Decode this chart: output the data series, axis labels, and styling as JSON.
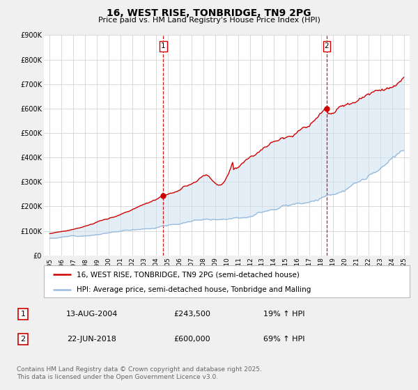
{
  "title": "16, WEST RISE, TONBRIDGE, TN9 2PG",
  "subtitle": "Price paid vs. HM Land Registry's House Price Index (HPI)",
  "ylim": [
    0,
    900000
  ],
  "yticks": [
    0,
    100000,
    200000,
    300000,
    400000,
    500000,
    600000,
    700000,
    800000,
    900000
  ],
  "ytick_labels": [
    "£0",
    "£100K",
    "£200K",
    "£300K",
    "£400K",
    "£500K",
    "£600K",
    "£700K",
    "£800K",
    "£900K"
  ],
  "xlim_start": 1994.5,
  "xlim_end": 2025.5,
  "xticks": [
    1995,
    1996,
    1997,
    1998,
    1999,
    2000,
    2001,
    2002,
    2003,
    2004,
    2005,
    2006,
    2007,
    2008,
    2009,
    2010,
    2011,
    2012,
    2013,
    2014,
    2015,
    2016,
    2017,
    2018,
    2019,
    2020,
    2021,
    2022,
    2023,
    2024,
    2025
  ],
  "bg_color": "#f0f0f0",
  "plot_bg_color": "#ffffff",
  "grid_color": "#cccccc",
  "line1_color": "#cc0000",
  "line2_color": "#99bbdd",
  "vline_color": "#cc0000",
  "sale1_x": 2004.617,
  "sale1_y": 243500,
  "sale2_x": 2018.472,
  "sale2_y": 600000,
  "marker_color": "#cc0000",
  "shade_color": "#cce0f0",
  "legend_label1": "16, WEST RISE, TONBRIDGE, TN9 2PG (semi-detached house)",
  "legend_label2": "HPI: Average price, semi-detached house, Tonbridge and Malling",
  "annotation1_num": "1",
  "annotation1_date": "13-AUG-2004",
  "annotation1_price": "£243,500",
  "annotation1_hpi": "19% ↑ HPI",
  "annotation2_num": "2",
  "annotation2_date": "22-JUN-2018",
  "annotation2_price": "£600,000",
  "annotation2_hpi": "69% ↑ HPI",
  "footnote": "Contains HM Land Registry data © Crown copyright and database right 2025.\nThis data is licensed under the Open Government Licence v3.0.",
  "title_fontsize": 10,
  "subtitle_fontsize": 8,
  "tick_fontsize": 7,
  "legend_fontsize": 7.5,
  "annotation_fontsize": 8,
  "footnote_fontsize": 6.5
}
